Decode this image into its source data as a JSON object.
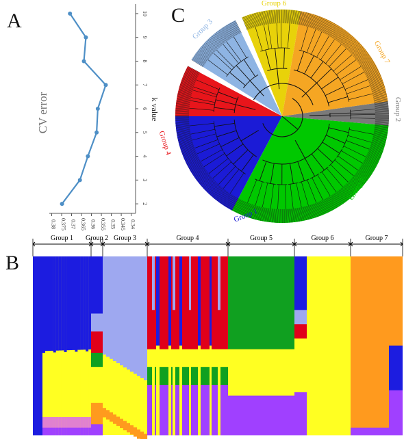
{
  "panels": {
    "a": "A",
    "b": "B",
    "c": "C"
  },
  "panel_a": {
    "ylabel": "CV error",
    "xlabel": "k value",
    "cv_ticks": [
      "0.38",
      "0.375",
      "0.37",
      "0.365",
      "0.36",
      "0.355",
      "0.35",
      "0.345",
      "0.34"
    ],
    "k_ticks": [
      "2",
      "3",
      "4",
      "5",
      "6",
      "7",
      "8",
      "9",
      "10"
    ],
    "line_color": "#4e8fc6"
  },
  "chart_data": {
    "type": "line",
    "title": "",
    "xlabel": "k value",
    "ylabel": "CV error",
    "x": [
      2,
      3,
      4,
      5,
      6,
      7,
      8,
      9,
      10
    ],
    "y": [
      0.3748,
      0.3658,
      0.3618,
      0.3574,
      0.3568,
      0.3528,
      0.3638,
      0.3628,
      0.3708
    ],
    "xlim": [
      1.6,
      10.4
    ],
    "ylim": [
      0.3378,
      0.3812
    ]
  },
  "panel_b": {
    "groups": [
      {
        "label": "Group 1"
      },
      {
        "label": "Group 2"
      },
      {
        "label": "Group 3"
      },
      {
        "label": "Group 4"
      },
      {
        "label": "Group 5"
      },
      {
        "label": "Group 6"
      },
      {
        "label": "Group 7"
      }
    ]
  },
  "panel_c": {
    "groups": [
      {
        "label": "Group 1",
        "color": "#1b1bd6"
      },
      {
        "label": "Group 2",
        "color": "#7a7a7a"
      },
      {
        "label": "Group 3",
        "color": "#8eb4e3"
      },
      {
        "label": "Group 4",
        "color": "#e8151b"
      },
      {
        "label": "Group 5",
        "color": "#00c800"
      },
      {
        "label": "Group 6",
        "color": "#e8d20a"
      },
      {
        "label": "Group 7",
        "color": "#f5a623"
      }
    ]
  },
  "colors": {
    "blue": "#1c1ce0",
    "lavender": "#9ea8f0",
    "red": "#e0001a",
    "green": "#10a020",
    "yellow": "#ffff22",
    "orange": "#ff9a1e",
    "purple": "#a040ff",
    "pink": "#e080d0"
  }
}
